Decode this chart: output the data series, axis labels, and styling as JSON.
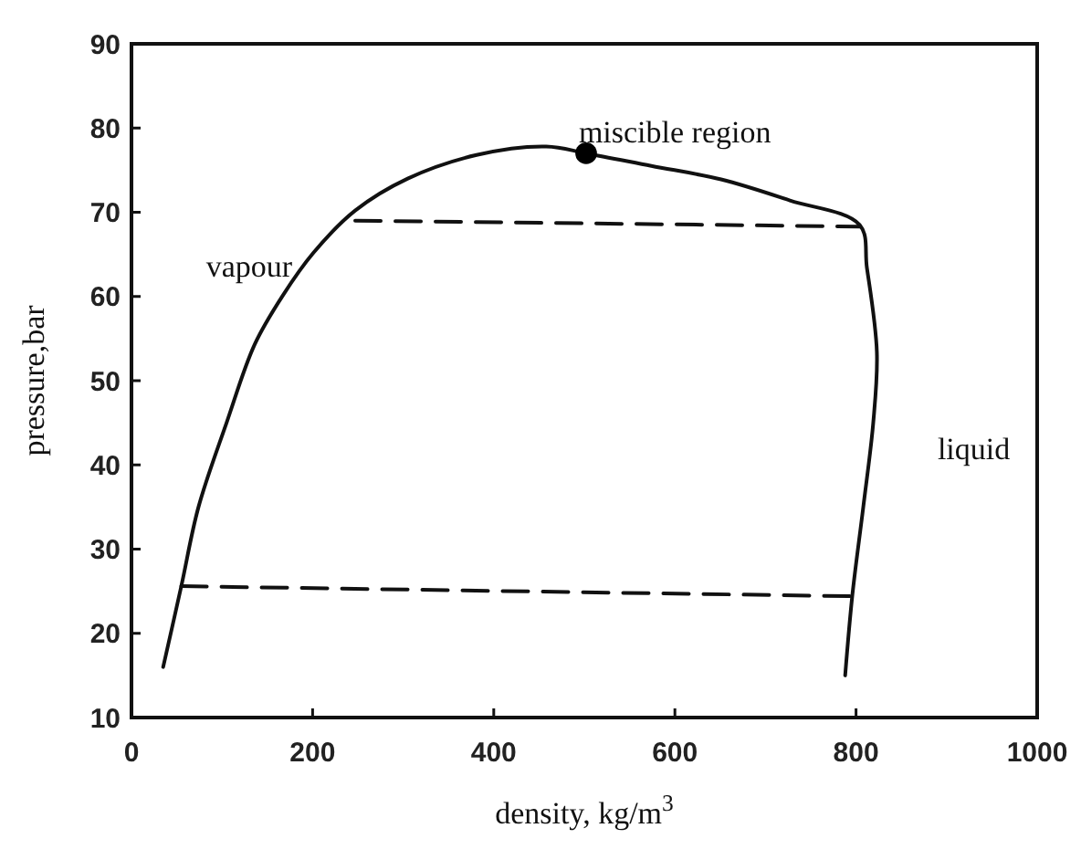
{
  "chart_data": {
    "type": "line",
    "xlabel": "density, kg/m$^{3}$",
    "ylabel": "pressure,bar",
    "xlim": [
      0,
      1000
    ],
    "ylim": [
      10,
      90
    ],
    "xticks": [
      0,
      200,
      400,
      600,
      800,
      1000
    ],
    "yticks": [
      10,
      20,
      30,
      40,
      50,
      60,
      70,
      80,
      90
    ],
    "grid": false,
    "series": [
      {
        "color": "#111111",
        "line_style": "solid",
        "marker": "none",
        "x": [
          35,
          55,
          74,
          105,
          136,
          167,
          201,
          247,
          305,
          381,
          458,
          502,
          574,
          651,
          727,
          804,
          812,
          823,
          819,
          808,
          796,
          788
        ],
        "values": [
          16,
          25.6,
          35,
          45,
          54.3,
          60.1,
          65.2,
          70.2,
          74,
          76.8,
          77.8,
          77,
          75.5,
          73.9,
          71.4,
          68.5,
          63.4,
          53.4,
          45,
          35,
          24.6,
          15
        ]
      },
      {
        "color": "#111111",
        "line_style": "dashed",
        "marker": "none",
        "x": [
          247,
          804
        ],
        "values": [
          69,
          68.3
        ]
      },
      {
        "color": "#111111",
        "line_style": "dashed",
        "marker": "none",
        "x": [
          55,
          796
        ],
        "values": [
          25.6,
          24.4
        ]
      },
      {
        "type": "scatter",
        "color": "#000000",
        "marker": "circle",
        "x": [
          502
        ],
        "values": [
          77
        ]
      }
    ],
    "annotations": [
      "miscible region",
      "vapour",
      "liquid"
    ]
  }
}
